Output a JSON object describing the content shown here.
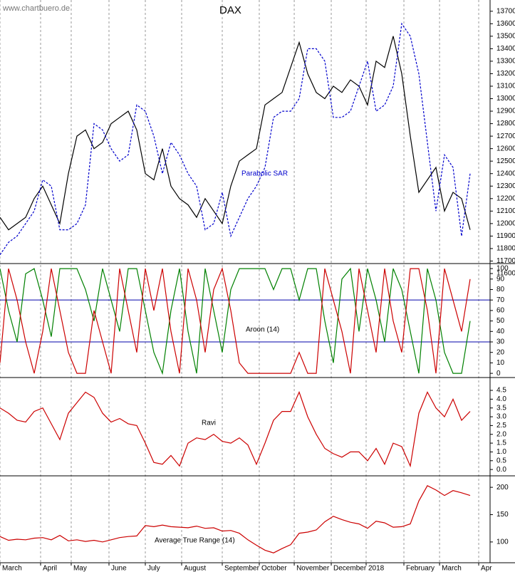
{
  "source": "www.chartbuero.de",
  "x_axis": {
    "xlim": [
      0,
      57.33
    ],
    "xticks": [
      {
        "value": 0,
        "label": "March"
      },
      {
        "value": 4.75,
        "label": "April"
      },
      {
        "value": 8.33,
        "label": "May"
      },
      {
        "value": 12.75,
        "label": "June"
      },
      {
        "value": 17,
        "label": "July"
      },
      {
        "value": 21.25,
        "label": "August"
      },
      {
        "value": 26,
        "label": "September"
      },
      {
        "value": 30.33,
        "label": "October"
      },
      {
        "value": 34.42,
        "label": "November"
      },
      {
        "value": 38.75,
        "label": "December"
      },
      {
        "value": 42.83,
        "label": "2018"
      },
      {
        "value": 47.25,
        "label": "February"
      },
      {
        "value": 51.42,
        "label": "March"
      },
      {
        "value": 56,
        "label": "Apr"
      }
    ]
  },
  "chart_data": [
    {
      "type": "line",
      "title": "DAX",
      "ylim": [
        11600,
        13790
      ],
      "yticks": [
        11600,
        11700,
        11800,
        11900,
        12000,
        12100,
        12200,
        12300,
        12400,
        12500,
        12600,
        12700,
        12800,
        12900,
        13000,
        13100,
        13200,
        13300,
        13400,
        13500,
        13600,
        13700
      ],
      "series": [
        {
          "color": "#000000",
          "values": [
            12050,
            11950,
            12000,
            12050,
            12200,
            12300,
            12150,
            12000,
            12400,
            12700,
            12750,
            12600,
            12650,
            12800,
            12850,
            12900,
            12750,
            12400,
            12350,
            12600,
            12300,
            12200,
            12150,
            12050,
            12200,
            12100,
            12000,
            12300,
            12500,
            12550,
            12600,
            12950,
            13000,
            13050,
            13250,
            13450,
            13200,
            13050,
            13000,
            13100,
            13050,
            13150,
            13100,
            12950,
            13300,
            13250,
            13500,
            13200,
            12700,
            12250,
            12350,
            12450,
            12100,
            12250,
            12200,
            11950
          ]
        },
        {
          "name": "Parabolic SAR",
          "color": "#0000cc",
          "dashed": true,
          "values": [
            11750,
            11850,
            11900,
            12000,
            12100,
            12350,
            12300,
            11950,
            11950,
            12000,
            12150,
            12800,
            12750,
            12600,
            12500,
            12550,
            12950,
            12900,
            12700,
            12400,
            12650,
            12550,
            12400,
            12300,
            11950,
            12000,
            12250,
            11900,
            12050,
            12200,
            12300,
            12450,
            12850,
            12900,
            12900,
            13000,
            13400,
            13400,
            13300,
            12850,
            12850,
            12900,
            13100,
            13300,
            12900,
            12950,
            13100,
            13600,
            13500,
            13200,
            12650,
            12100,
            12550,
            12450,
            11900,
            12400
          ]
        }
      ]
    },
    {
      "type": "line",
      "title": "Aroon (14)",
      "ylim": [
        -4,
        104.8
      ],
      "yticks": [
        0,
        10,
        20,
        30,
        40,
        50,
        60,
        70,
        80,
        90,
        100
      ],
      "reference_lines": [
        70,
        30
      ],
      "reference_color": "#0000aa",
      "series": [
        {
          "color": "#008000",
          "values": [
            100,
            60,
            30,
            95,
            100,
            70,
            35,
            100,
            100,
            100,
            80,
            50,
            100,
            70,
            40,
            100,
            100,
            60,
            20,
            0,
            60,
            100,
            40,
            0,
            100,
            60,
            20,
            80,
            100,
            100,
            100,
            100,
            80,
            100,
            100,
            70,
            100,
            100,
            50,
            10,
            90,
            100,
            40,
            100,
            70,
            30,
            100,
            80,
            40,
            0,
            100,
            70,
            20,
            0,
            0,
            50
          ]
        },
        {
          "color": "#cc0000",
          "values": [
            10,
            100,
            70,
            30,
            0,
            40,
            100,
            60,
            20,
            0,
            0,
            60,
            30,
            0,
            100,
            60,
            20,
            100,
            60,
            100,
            40,
            0,
            100,
            70,
            20,
            80,
            100,
            60,
            10,
            0,
            0,
            0,
            0,
            0,
            0,
            20,
            0,
            0,
            100,
            70,
            40,
            0,
            100,
            60,
            20,
            100,
            50,
            20,
            100,
            100,
            60,
            0,
            100,
            70,
            40,
            90
          ]
        }
      ]
    },
    {
      "type": "line",
      "title": "Ravi",
      "ylim": [
        -0.36,
        5.23
      ],
      "yticks": [
        {
          "value": 0,
          "label": "0.0"
        },
        0.5,
        {
          "value": 1,
          "label": "1.0"
        },
        1.5,
        {
          "value": 2,
          "label": "2.0"
        },
        2.5,
        {
          "value": 3,
          "label": "3.0"
        },
        3.5,
        {
          "value": 4,
          "label": "4.0"
        },
        4.5
      ],
      "series": [
        {
          "color": "#cc0000",
          "values": [
            3.5,
            3.2,
            2.8,
            2.7,
            3.3,
            3.5,
            2.6,
            1.7,
            3.2,
            3.8,
            4.4,
            4.1,
            3.2,
            2.7,
            2.9,
            2.6,
            2.5,
            1.5,
            0.4,
            0.3,
            0.8,
            0.2,
            1.5,
            1.8,
            1.7,
            2.0,
            1.6,
            1.5,
            1.8,
            1.4,
            0.3,
            1.5,
            2.8,
            3.3,
            3.3,
            4.4,
            3.0,
            2.0,
            1.2,
            0.9,
            0.7,
            1.0,
            1.0,
            0.5,
            1.2,
            0.3,
            1.5,
            1.3,
            0.2,
            3.2,
            4.4,
            3.5,
            3.0,
            4.0,
            2.8,
            3.3
          ]
        }
      ]
    },
    {
      "type": "line",
      "title": "Average True Range (14)",
      "ylim": [
        62,
        221
      ],
      "yticks": [
        100,
        150,
        200
      ],
      "series": [
        {
          "color": "#cc0000",
          "values": [
            110,
            103,
            105,
            104,
            107,
            108,
            104,
            112,
            102,
            104,
            101,
            103,
            100,
            104,
            108,
            110,
            111,
            130,
            128,
            131,
            128,
            127,
            126,
            129,
            125,
            126,
            120,
            121,
            116,
            104,
            94,
            85,
            80,
            88,
            95,
            116,
            118,
            122,
            137,
            147,
            141,
            136,
            133,
            125,
            138,
            135,
            127,
            128,
            133,
            175,
            203,
            195,
            185,
            194,
            190,
            185
          ]
        }
      ]
    }
  ]
}
